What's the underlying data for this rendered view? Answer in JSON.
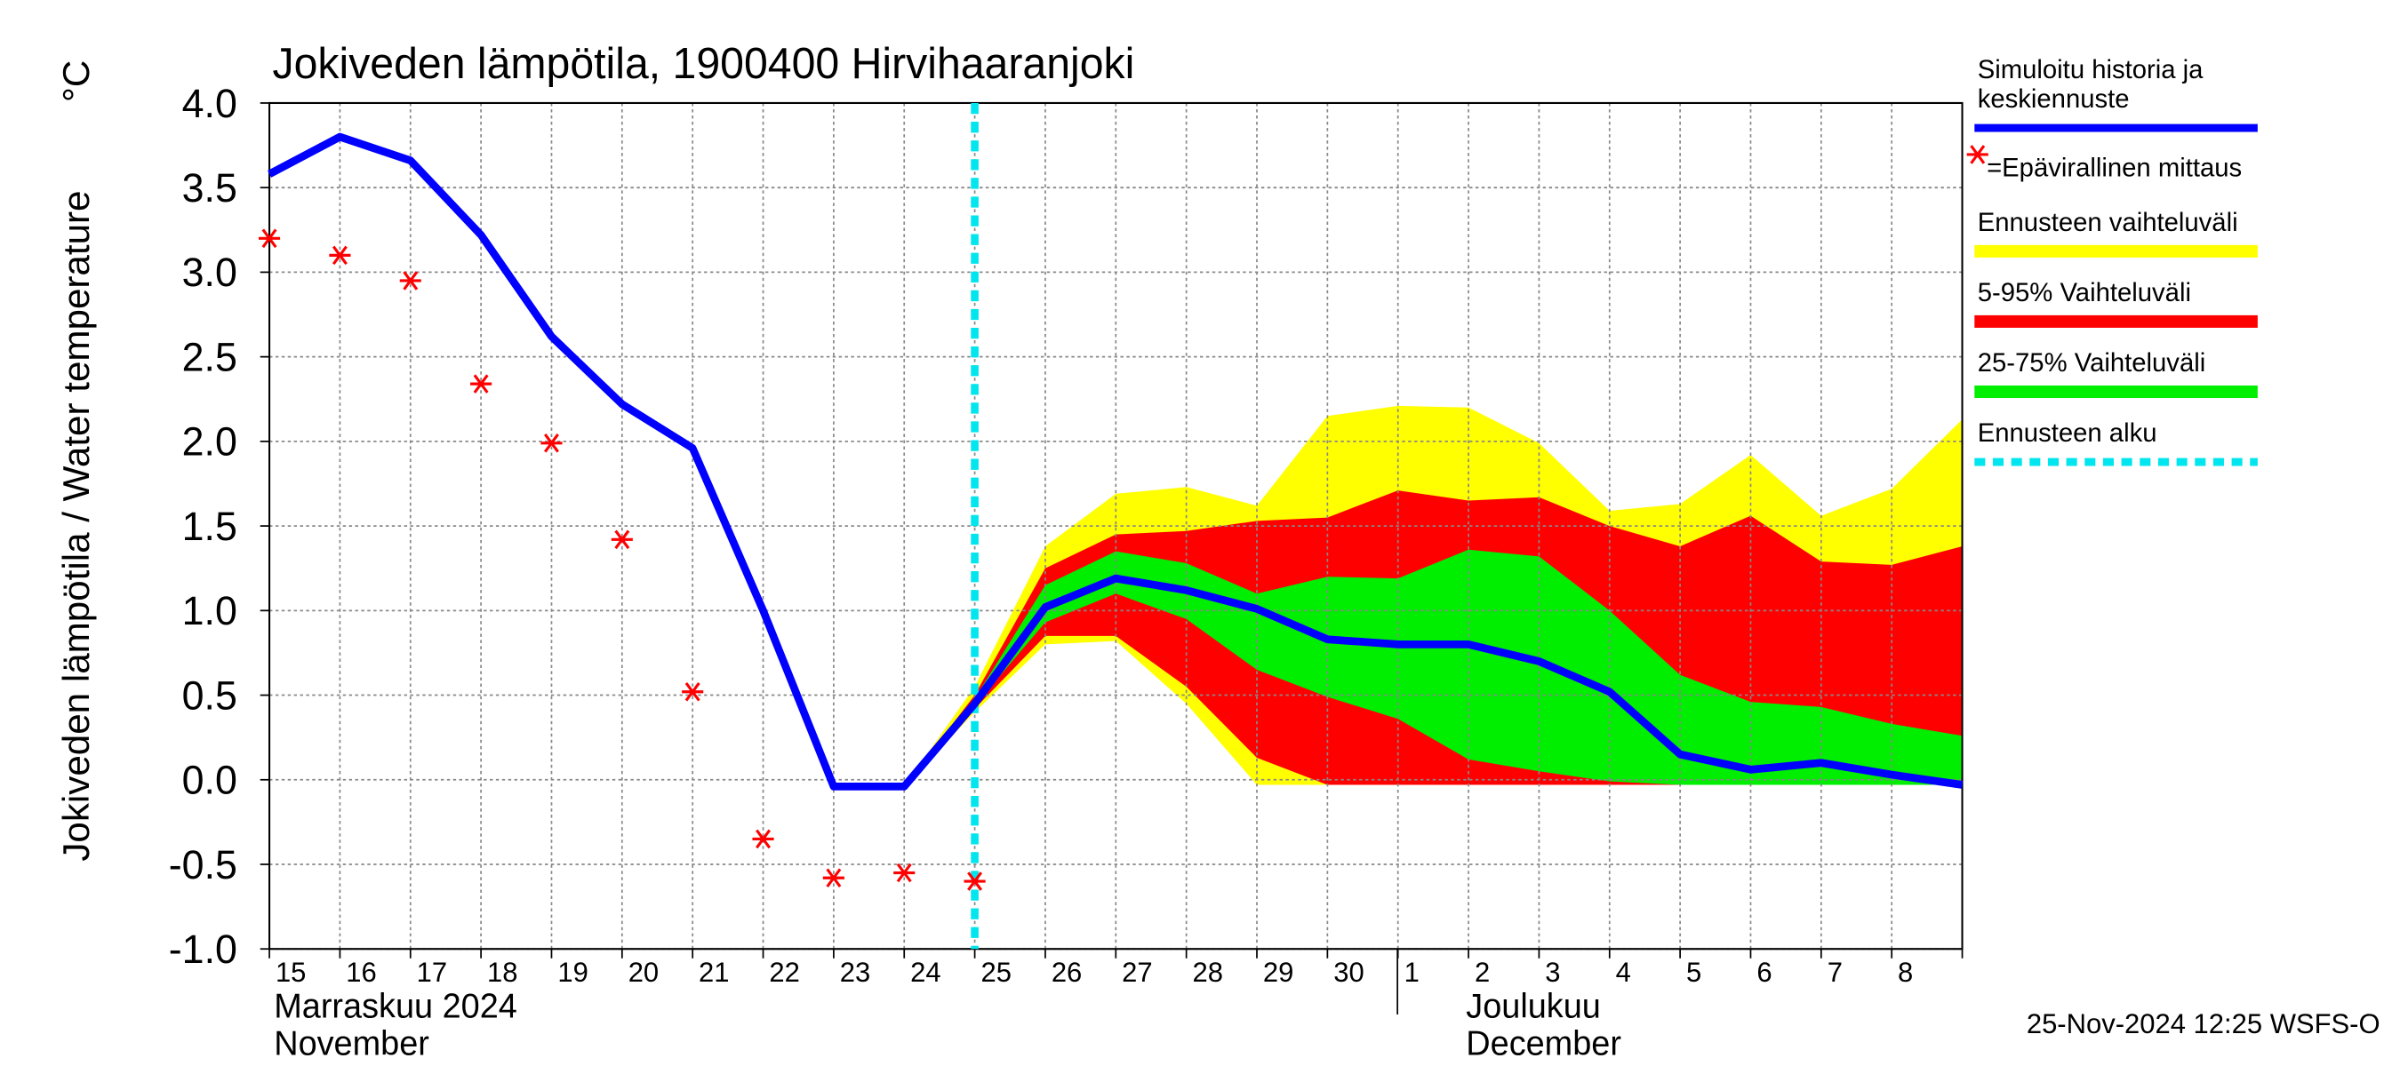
{
  "chart_data": {
    "type": "line",
    "title": "Jokiveden lämpötila, 1900400 Hirvihaaranjoki",
    "y_label": "Jokiveden lämpötila / Water temperature",
    "unit": "°C",
    "ylim": [
      -1.0,
      4.0
    ],
    "yticks": [
      {
        "value": -1.0,
        "label": "-1.0"
      },
      {
        "value": -0.5,
        "label": "-0.5"
      },
      {
        "value": 0.0,
        "label": "0.0"
      },
      {
        "value": 0.5,
        "label": "0.5"
      },
      {
        "value": 1.0,
        "label": "1.0"
      },
      {
        "value": 1.5,
        "label": "1.5"
      },
      {
        "value": 2.0,
        "label": "2.0"
      },
      {
        "value": 2.5,
        "label": "2.5"
      },
      {
        "value": 3.0,
        "label": "3.0"
      },
      {
        "value": 3.5,
        "label": "3.5"
      },
      {
        "value": 4.0,
        "label": "4.0"
      }
    ],
    "grid": true,
    "categories": [
      "15",
      "16",
      "17",
      "18",
      "19",
      "20",
      "21",
      "22",
      "23",
      "24",
      "25",
      "26",
      "27",
      "28",
      "29",
      "30",
      "1",
      "2",
      "3",
      "4",
      "5",
      "6",
      "7",
      "8",
      null
    ],
    "months": [
      {
        "lines": [
          "Marraskuu 2024",
          "November"
        ]
      },
      {
        "lines": [
          "Joulukuu",
          "December"
        ]
      }
    ],
    "series": [
      {
        "name": "Ennusteen vaihteluväli",
        "type": "band",
        "color": "#ffff00",
        "upper": [
          null,
          null,
          null,
          null,
          null,
          null,
          null,
          null,
          null,
          -0.04,
          0.55,
          1.38,
          1.69,
          1.73,
          1.62,
          2.15,
          2.21,
          2.2,
          1.99,
          1.59,
          1.63,
          1.92,
          1.56,
          1.72,
          2.13
        ],
        "lower": [
          null,
          null,
          null,
          null,
          null,
          null,
          null,
          null,
          null,
          -0.04,
          0.4,
          0.8,
          0.82,
          0.45,
          -0.03,
          -0.03,
          -0.03,
          -0.03,
          -0.03,
          -0.03,
          -0.03,
          -0.03,
          -0.03,
          -0.03,
          -0.03
        ]
      },
      {
        "name": "5-95% Vaihteluväli",
        "type": "band",
        "color": "#ff0000",
        "upper": [
          null,
          null,
          null,
          null,
          null,
          null,
          null,
          null,
          null,
          -0.04,
          0.5,
          1.25,
          1.45,
          1.47,
          1.53,
          1.55,
          1.71,
          1.65,
          1.67,
          1.5,
          1.38,
          1.56,
          1.29,
          1.27,
          1.38
        ],
        "lower": [
          null,
          null,
          null,
          null,
          null,
          null,
          null,
          null,
          null,
          -0.04,
          0.42,
          0.85,
          0.85,
          0.55,
          0.13,
          -0.03,
          -0.03,
          -0.03,
          -0.03,
          -0.03,
          -0.03,
          -0.03,
          -0.03,
          -0.03,
          -0.03
        ]
      },
      {
        "name": "25-75% Vaihteluväli",
        "type": "band",
        "color": "#00ee00",
        "upper": [
          null,
          null,
          null,
          null,
          null,
          null,
          null,
          null,
          null,
          -0.04,
          0.48,
          1.15,
          1.35,
          1.28,
          1.1,
          1.2,
          1.19,
          1.36,
          1.32,
          1.0,
          0.62,
          0.46,
          0.43,
          0.33,
          0.26
        ],
        "lower": [
          null,
          null,
          null,
          null,
          null,
          null,
          null,
          null,
          null,
          -0.04,
          0.44,
          0.93,
          1.1,
          0.95,
          0.65,
          0.49,
          0.36,
          0.12,
          0.05,
          -0.01,
          -0.03,
          -0.03,
          -0.03,
          -0.03,
          -0.03
        ]
      },
      {
        "name": [
          "Simuloitu historia ja",
          "keskiennuste"
        ],
        "type": "line",
        "color": "#0000ff",
        "values": [
          3.58,
          3.8,
          3.66,
          3.22,
          2.62,
          2.22,
          1.96,
          1.0,
          -0.04,
          -0.04,
          0.45,
          1.02,
          1.19,
          1.12,
          1.01,
          0.83,
          0.8,
          0.8,
          0.7,
          0.52,
          0.15,
          0.06,
          0.1,
          0.03,
          -0.03
        ]
      },
      {
        "name": "=Epävirallinen mittaus",
        "type": "scatter",
        "color": "#ff0000",
        "values": [
          3.2,
          3.1,
          2.95,
          2.34,
          1.99,
          1.42,
          0.52,
          -0.35,
          -0.58,
          -0.55,
          -0.6,
          null,
          null,
          null,
          null,
          null,
          null,
          null,
          null,
          null,
          null,
          null,
          null,
          null,
          null
        ]
      }
    ],
    "forecast_start": {
      "name": "Ennusteen alku",
      "color": "#00e5ee",
      "index": 10
    },
    "footer": "25-Nov-2024 12:25 WSFS-O"
  }
}
